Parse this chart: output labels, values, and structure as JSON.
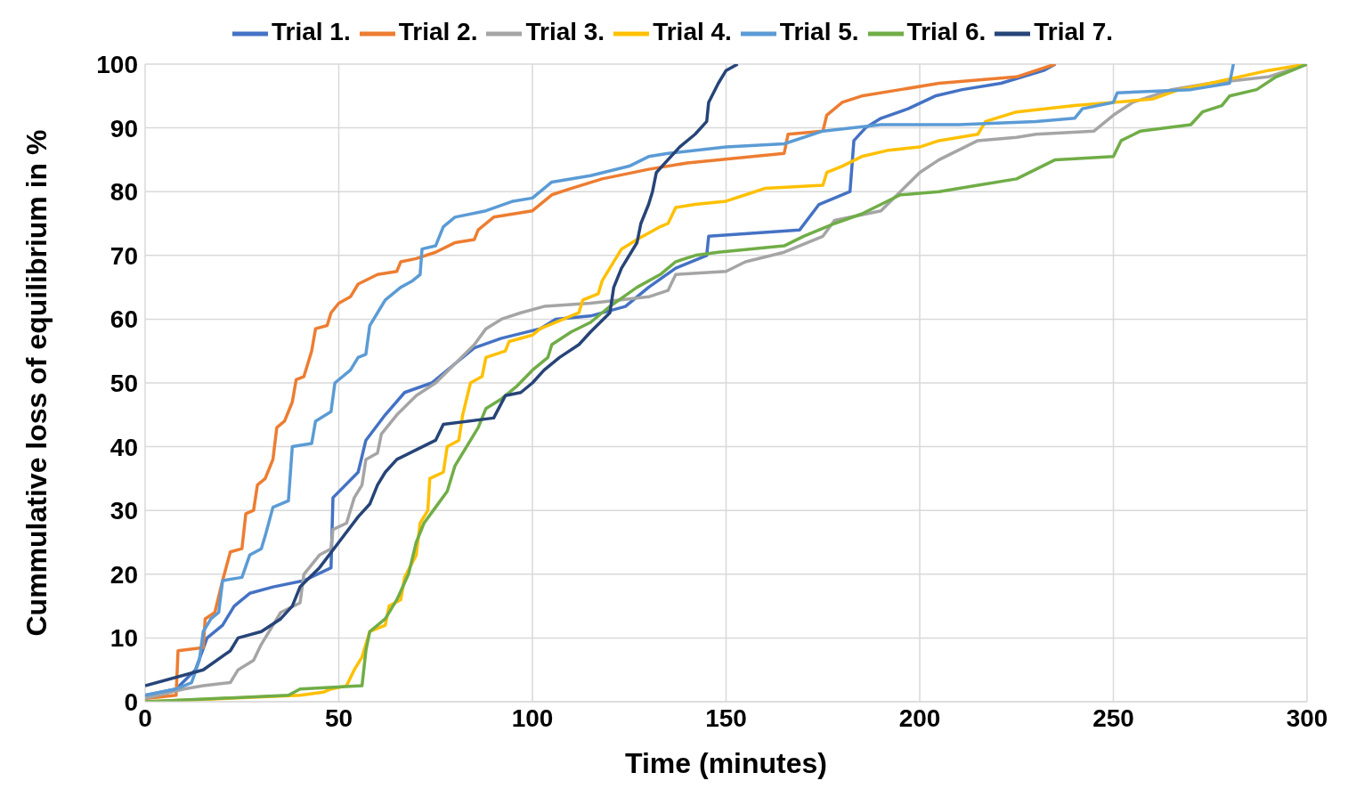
{
  "chart_data": {
    "type": "line",
    "xlabel": "Time (minutes)",
    "ylabel": "Cummulative loss of equilibrium in %",
    "xlim": [
      0,
      300
    ],
    "xticks": [
      0,
      50,
      100,
      150,
      200,
      250,
      300
    ],
    "ylim": [
      0,
      100
    ],
    "yticks": [
      0,
      10,
      20,
      30,
      40,
      50,
      60,
      70,
      80,
      90,
      100
    ],
    "grid": true,
    "legend": "top",
    "marker": "none",
    "line_style": "solid",
    "series": [
      {
        "name": "Trial 1.",
        "color": "#4472c4",
        "x": [
          0,
          8,
          13,
          16,
          20,
          23,
          27,
          33,
          41,
          48,
          48.5,
          55,
          57,
          62,
          67,
          74,
          80,
          85,
          92,
          102,
          106,
          115,
          124,
          130,
          137,
          145,
          145.5,
          169,
          174,
          182,
          183,
          186,
          190,
          197,
          204,
          211,
          221,
          232,
          235
        ],
        "values": [
          1,
          2,
          5,
          10,
          12,
          15,
          17,
          18,
          19,
          21,
          32,
          36,
          41,
          45,
          48.5,
          50,
          53,
          55.5,
          57,
          58.5,
          60,
          60.5,
          62,
          65,
          68,
          70,
          73,
          74,
          78,
          80,
          88,
          90,
          91.5,
          93,
          95,
          96,
          97,
          99,
          100
        ]
      },
      {
        "name": "Trial 2.",
        "color": "#ed7d31",
        "x": [
          0,
          8,
          8.5,
          15,
          15.5,
          18,
          20,
          22,
          25,
          26,
          28,
          29,
          31,
          33,
          34,
          36,
          38,
          39,
          41,
          43,
          44,
          47,
          48,
          50,
          53,
          55,
          60,
          65,
          66,
          70,
          75,
          80,
          85,
          86,
          90,
          100,
          105,
          110,
          118,
          130,
          140,
          165,
          166,
          175,
          176,
          180,
          185,
          195,
          205,
          225,
          235
        ],
        "values": [
          0.5,
          1,
          8,
          8.5,
          13,
          14,
          19,
          23.5,
          24,
          29.5,
          30,
          34,
          35,
          38,
          43,
          44,
          47,
          50.5,
          51,
          55,
          58.5,
          59,
          61,
          62.5,
          63.5,
          65.5,
          67,
          67.5,
          69,
          69.5,
          70.5,
          72,
          72.5,
          74,
          76,
          77,
          79.5,
          80.5,
          82,
          83.5,
          84.5,
          86,
          89,
          89.5,
          92,
          94,
          95,
          96,
          97,
          98,
          100
        ]
      },
      {
        "name": "Trial 3.",
        "color": "#a5a5a5",
        "x": [
          0,
          10,
          15,
          22,
          24,
          28,
          30,
          33,
          35,
          40,
          41,
          45,
          48,
          48.5,
          52,
          54,
          56,
          57,
          60,
          61,
          65,
          70,
          75,
          80,
          85,
          88,
          92,
          97,
          103,
          115,
          130,
          135,
          137,
          150,
          155,
          165,
          175,
          178,
          190,
          195,
          200,
          205,
          210,
          215,
          225,
          230,
          245,
          250,
          255,
          265,
          275,
          290,
          300
        ],
        "values": [
          0.5,
          2,
          2.5,
          3,
          5,
          6.5,
          9,
          12,
          14,
          15.5,
          20,
          23,
          24,
          27,
          28,
          32,
          34,
          38,
          39,
          42,
          45,
          48,
          50,
          53,
          56,
          58.5,
          60,
          61,
          62,
          62.5,
          63.5,
          64.5,
          67,
          67.5,
          69,
          70.5,
          73,
          75.5,
          77,
          80,
          83,
          85,
          86.5,
          88,
          88.5,
          89,
          89.5,
          92,
          94,
          96,
          97,
          98,
          100
        ]
      },
      {
        "name": "Trial 4.",
        "color": "#ffc000",
        "x": [
          0,
          40,
          46,
          48,
          52,
          54,
          56,
          58,
          62,
          63,
          66,
          67,
          70,
          71,
          73,
          73.5,
          77,
          78,
          81,
          82,
          84,
          87,
          88,
          93,
          94,
          100,
          102,
          108,
          112,
          113,
          117,
          118,
          121,
          123,
          127,
          130,
          133,
          135,
          137,
          142,
          150,
          155,
          160,
          175,
          176,
          180,
          185,
          192,
          200,
          205,
          215,
          217,
          225,
          240,
          260,
          267,
          275,
          290,
          300
        ],
        "values": [
          0,
          1,
          1.5,
          2,
          2.5,
          5,
          7,
          11,
          12,
          15,
          16,
          19.5,
          23,
          28,
          30,
          35,
          36,
          40,
          41,
          45,
          50,
          51,
          54,
          55,
          56.5,
          57.5,
          58.5,
          60,
          61,
          63,
          64,
          66,
          69,
          71,
          72.5,
          73.5,
          74.5,
          75,
          77.5,
          78,
          78.5,
          79.5,
          80.5,
          81,
          83,
          84,
          85.5,
          86.5,
          87,
          88,
          89,
          91,
          92.5,
          93.5,
          94.5,
          96,
          97,
          99,
          100
        ]
      },
      {
        "name": "Trial 5.",
        "color": "#5b9bd5",
        "x": [
          0,
          8,
          12,
          14,
          15,
          17,
          19,
          20,
          25,
          27,
          30,
          31,
          33,
          37,
          38,
          43,
          44,
          48,
          49,
          53,
          55,
          57,
          58,
          60,
          62,
          66,
          69,
          71,
          71.5,
          75,
          77,
          80,
          88,
          95,
          100,
          105,
          115,
          125,
          130,
          135,
          150,
          165,
          175,
          190,
          210,
          230,
          240,
          242,
          250,
          251,
          270,
          280,
          281
        ],
        "values": [
          1,
          2,
          3,
          6.5,
          11,
          13,
          14,
          19,
          19.5,
          23,
          24,
          26,
          30.5,
          31.5,
          40,
          40.5,
          44,
          45.5,
          50,
          52,
          54,
          54.5,
          59,
          61,
          63,
          65,
          66,
          67,
          71,
          71.5,
          74.5,
          76,
          77,
          78.5,
          79,
          81.5,
          82.5,
          84,
          85.5,
          86,
          87,
          87.5,
          89.5,
          90.5,
          90.5,
          91,
          91.5,
          93,
          94,
          95.5,
          96,
          97,
          100
        ]
      },
      {
        "name": "Trial 6.",
        "color": "#70ad47",
        "x": [
          0,
          37,
          40,
          56,
          57,
          58,
          62,
          65,
          68,
          70,
          72,
          75,
          78,
          80,
          83,
          86,
          88,
          92,
          96,
          100,
          104,
          105,
          110,
          115,
          118,
          120,
          127,
          133,
          137,
          142,
          148,
          165,
          170,
          178,
          185,
          190,
          195,
          205,
          215,
          225,
          230,
          235,
          250,
          252,
          257,
          270,
          273,
          278,
          280,
          287,
          292,
          300
        ],
        "values": [
          0,
          1,
          2,
          2.5,
          8,
          11,
          13,
          16,
          20,
          25,
          28,
          30.5,
          33,
          37,
          40,
          43,
          46,
          47.5,
          49.5,
          52,
          54,
          56,
          58,
          59.5,
          61,
          62,
          65,
          67,
          69,
          70,
          70.5,
          71.5,
          73,
          75,
          76.5,
          78,
          79.5,
          80,
          81,
          82,
          83.5,
          85,
          85.5,
          88,
          89.5,
          90.5,
          92.5,
          93.5,
          95,
          96,
          98,
          100
        ]
      },
      {
        "name": "Trial 7.",
        "color": "#264478",
        "x": [
          0,
          15,
          22,
          24,
          30,
          35,
          38,
          40,
          45,
          50,
          55,
          58,
          60,
          62,
          65,
          70,
          75,
          77,
          90,
          93,
          97,
          100,
          103,
          107,
          112,
          115,
          120,
          121,
          123,
          127,
          128,
          130,
          131,
          132,
          135,
          138,
          142,
          145,
          145.5,
          148,
          150,
          153
        ],
        "values": [
          2.5,
          5,
          8,
          10,
          11,
          13,
          15,
          18,
          21,
          25,
          29,
          31,
          34,
          36,
          38,
          39.5,
          41,
          43.5,
          44.5,
          48,
          48.5,
          50,
          52,
          54,
          56,
          58,
          61,
          65,
          68,
          72,
          75,
          78,
          80,
          83,
          85,
          87,
          89,
          91,
          94,
          97,
          99,
          100
        ]
      }
    ]
  }
}
